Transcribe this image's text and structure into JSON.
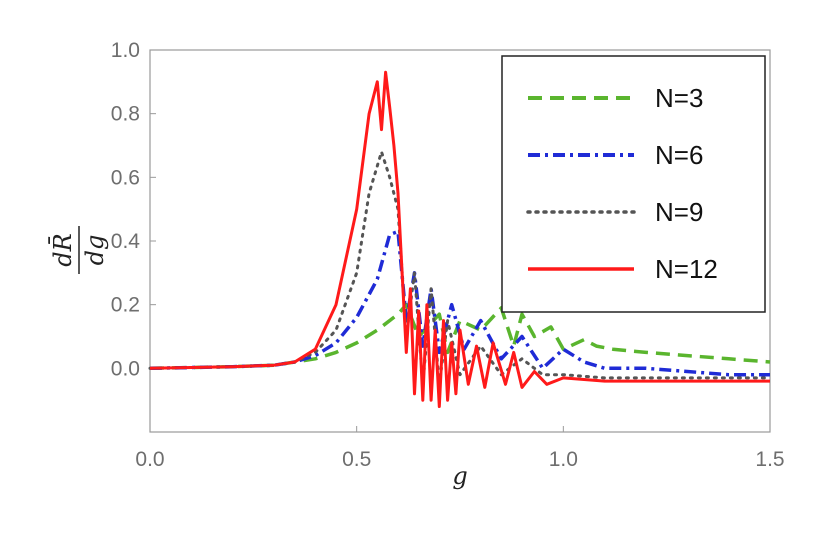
{
  "chart_data": {
    "type": "line",
    "xlabel": "g",
    "ylabel": {
      "numerator": "dR̄",
      "denominator": "dg"
    },
    "xlim": [
      0,
      1.5
    ],
    "ylim": [
      -0.2,
      1.0
    ],
    "xticks": [
      0.0,
      0.5,
      1.0,
      1.5
    ],
    "xtick_labels": [
      "0.0",
      "0.5",
      "1.0",
      "1.5"
    ],
    "yticks": [
      0.0,
      0.2,
      0.4,
      0.6,
      0.8,
      1.0
    ],
    "ytick_labels": [
      "0.0",
      "0.2",
      "0.4",
      "0.6",
      "0.8",
      "1.0"
    ],
    "grid": false,
    "legend_position": "top-right",
    "series": [
      {
        "name": "N=3",
        "color": "#5ab52e",
        "dash": "dashed",
        "x": [
          0.0,
          0.2,
          0.3,
          0.35,
          0.4,
          0.45,
          0.5,
          0.55,
          0.6,
          0.62,
          0.65,
          0.7,
          0.72,
          0.75,
          0.8,
          0.85,
          0.88,
          0.9,
          0.93,
          0.97,
          1.0,
          1.05,
          1.08,
          1.12,
          1.2,
          1.3,
          1.4,
          1.5
        ],
        "y": [
          0.0,
          0.005,
          0.01,
          0.02,
          0.03,
          0.05,
          0.08,
          0.12,
          0.17,
          0.2,
          0.1,
          0.17,
          0.05,
          0.15,
          0.12,
          0.19,
          0.07,
          0.17,
          0.1,
          0.13,
          0.06,
          0.09,
          0.07,
          0.06,
          0.05,
          0.04,
          0.03,
          0.02
        ]
      },
      {
        "name": "N=6",
        "color": "#1f2bd6",
        "dash": "dashdot",
        "x": [
          0.0,
          0.2,
          0.3,
          0.35,
          0.4,
          0.45,
          0.5,
          0.55,
          0.58,
          0.6,
          0.62,
          0.64,
          0.66,
          0.68,
          0.7,
          0.73,
          0.76,
          0.8,
          0.85,
          0.9,
          0.95,
          1.0,
          1.05,
          1.1,
          1.2,
          1.3,
          1.4,
          1.5
        ],
        "y": [
          0.0,
          0.005,
          0.01,
          0.02,
          0.04,
          0.08,
          0.16,
          0.28,
          0.42,
          0.43,
          0.15,
          0.3,
          0.07,
          0.25,
          0.05,
          0.2,
          0.06,
          0.15,
          0.03,
          0.1,
          0.0,
          0.06,
          0.02,
          0.0,
          0.0,
          -0.01,
          -0.02,
          -0.02
        ]
      },
      {
        "name": "N=9",
        "color": "#555555",
        "dash": "dotted",
        "x": [
          0.0,
          0.2,
          0.3,
          0.35,
          0.4,
          0.45,
          0.5,
          0.53,
          0.56,
          0.58,
          0.6,
          0.62,
          0.64,
          0.66,
          0.68,
          0.7,
          0.72,
          0.75,
          0.8,
          0.85,
          0.9,
          0.95,
          1.0,
          1.1,
          1.2,
          1.3,
          1.4,
          1.5
        ],
        "y": [
          0.0,
          0.005,
          0.01,
          0.02,
          0.05,
          0.12,
          0.3,
          0.55,
          0.68,
          0.6,
          0.5,
          0.1,
          0.3,
          -0.05,
          0.25,
          -0.05,
          0.15,
          -0.02,
          0.07,
          -0.02,
          0.03,
          -0.02,
          -0.02,
          -0.03,
          -0.03,
          -0.03,
          -0.03,
          -0.03
        ]
      },
      {
        "name": "N=12",
        "color": "#ff1a1a",
        "dash": "solid",
        "x": [
          0.0,
          0.2,
          0.3,
          0.35,
          0.4,
          0.45,
          0.5,
          0.53,
          0.55,
          0.56,
          0.57,
          0.58,
          0.59,
          0.6,
          0.61,
          0.62,
          0.63,
          0.64,
          0.65,
          0.66,
          0.67,
          0.68,
          0.69,
          0.7,
          0.71,
          0.72,
          0.73,
          0.74,
          0.75,
          0.77,
          0.79,
          0.81,
          0.83,
          0.86,
          0.88,
          0.9,
          0.93,
          0.96,
          1.0,
          1.05,
          1.1,
          1.2,
          1.3,
          1.4,
          1.5
        ],
        "y": [
          0.0,
          0.005,
          0.01,
          0.02,
          0.06,
          0.2,
          0.5,
          0.8,
          0.9,
          0.75,
          0.93,
          0.82,
          0.7,
          0.55,
          0.3,
          0.05,
          0.25,
          -0.08,
          0.18,
          -0.1,
          0.2,
          -0.1,
          0.12,
          -0.12,
          0.15,
          -0.1,
          0.08,
          -0.08,
          0.12,
          -0.05,
          0.07,
          -0.06,
          0.08,
          -0.05,
          0.05,
          -0.06,
          -0.01,
          -0.05,
          -0.03,
          -0.035,
          -0.04,
          -0.04,
          -0.04,
          -0.04,
          -0.04
        ]
      }
    ]
  }
}
